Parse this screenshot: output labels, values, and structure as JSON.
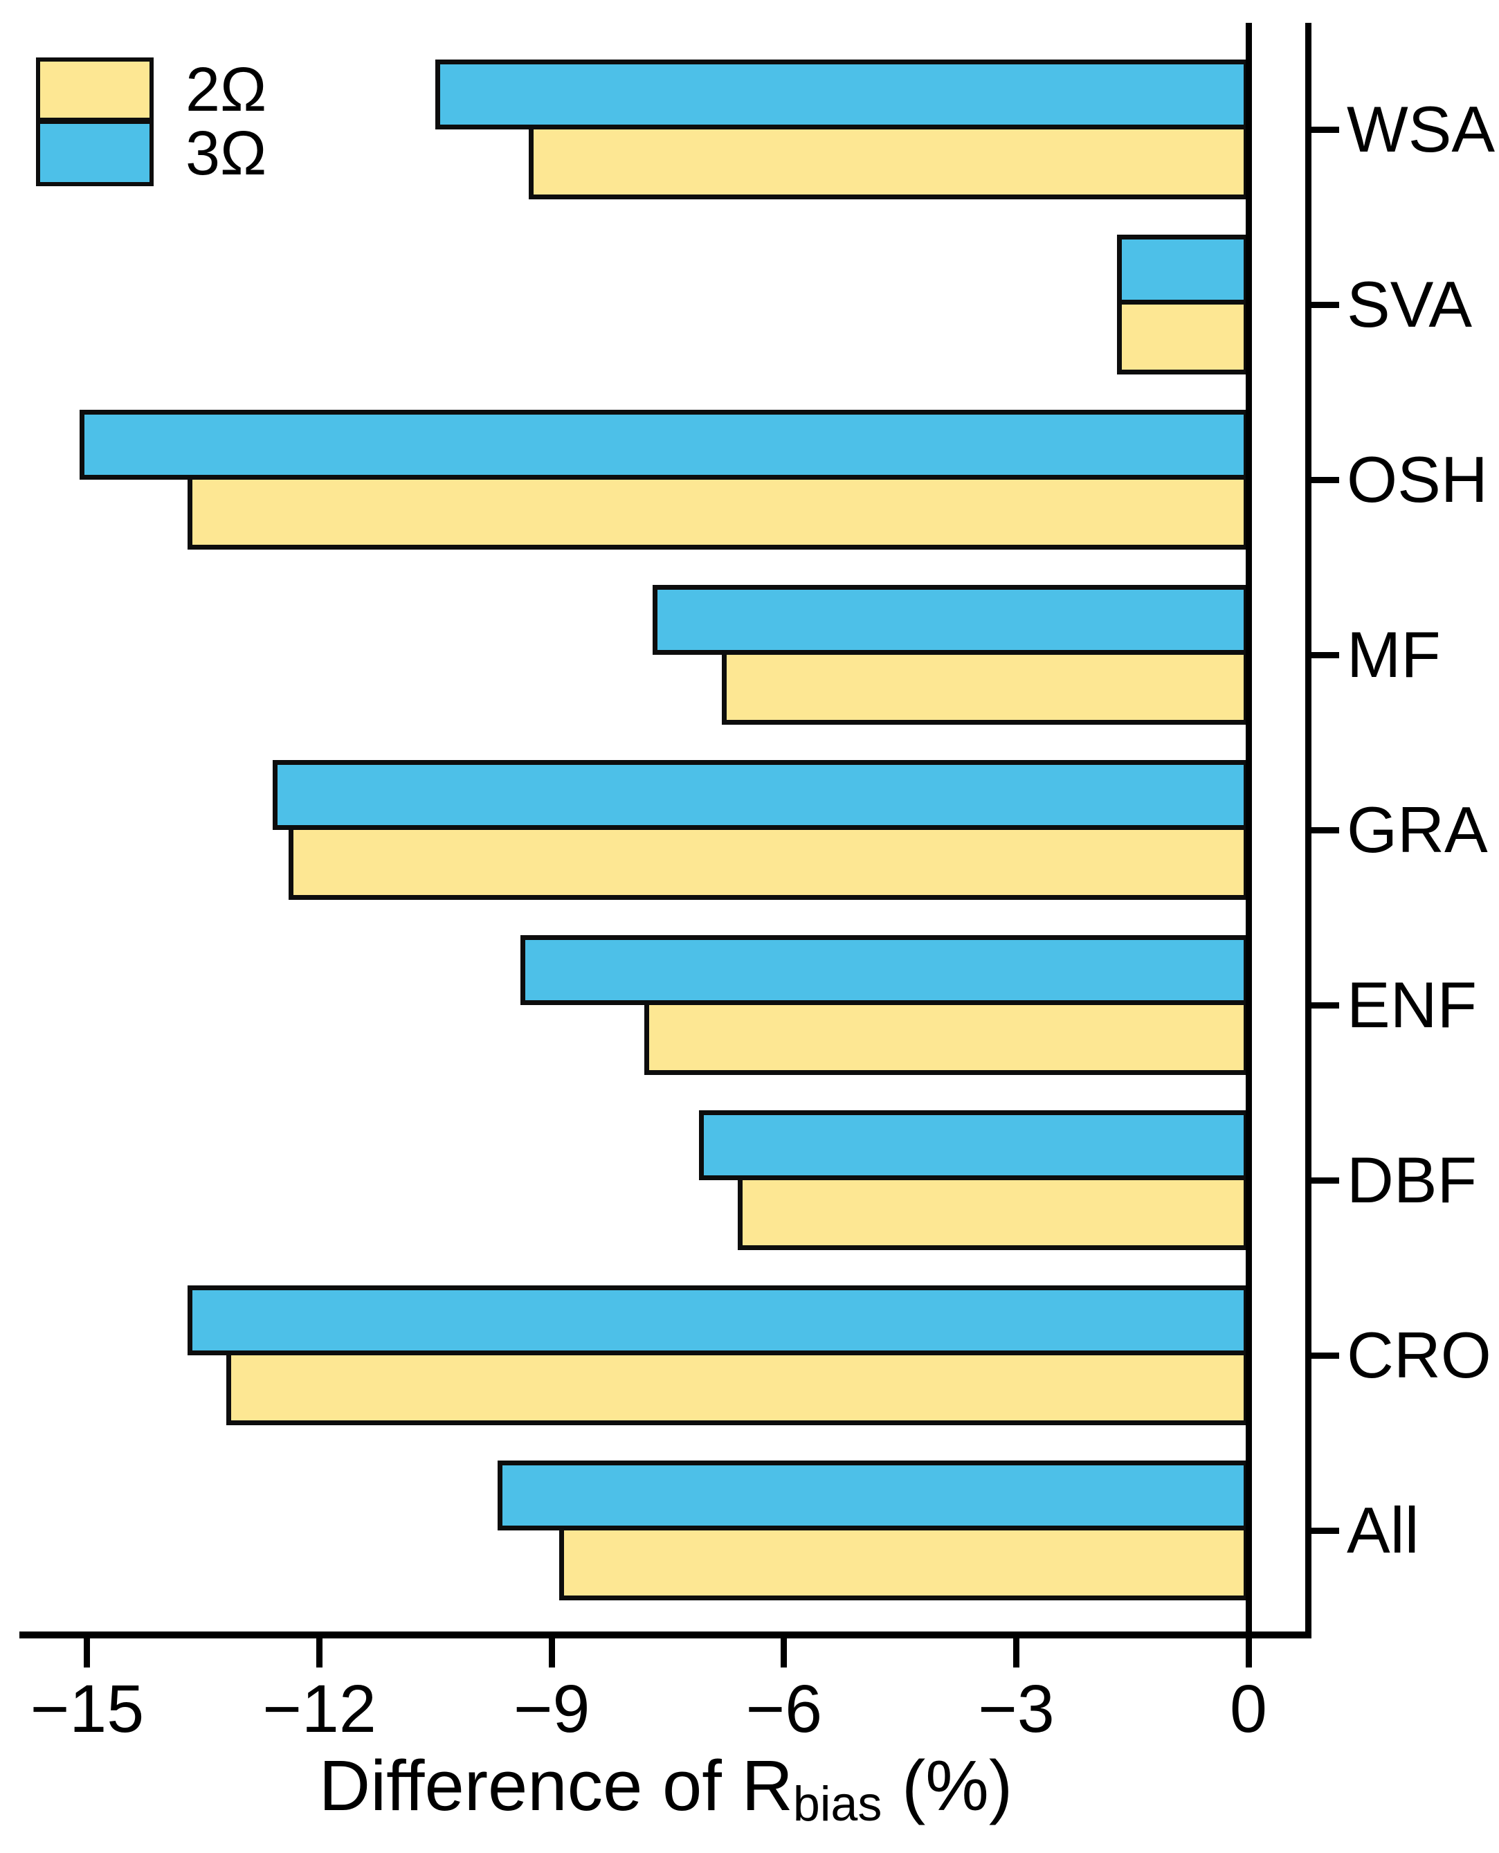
{
  "legend": {
    "items": [
      {
        "label": "2Ω",
        "color": "#FDE793"
      },
      {
        "label": "3Ω",
        "color": "#4DC0E8"
      }
    ]
  },
  "axes": {
    "x_label": {
      "prefix": "Difference of R",
      "sub": "bias",
      "suffix": " (%)"
    },
    "x_ticks": [
      {
        "value": -15,
        "label": "−15"
      },
      {
        "value": -12,
        "label": "−12"
      },
      {
        "value": -9,
        "label": "−9"
      },
      {
        "value": -6,
        "label": "−6"
      },
      {
        "value": -3,
        "label": "−3"
      },
      {
        "value": 0,
        "label": "0"
      }
    ]
  },
  "chart_data": {
    "type": "bar",
    "orientation": "horizontal",
    "title": "",
    "xlabel": "Difference of R_bias (%)",
    "ylabel": "",
    "categories": [
      "WSA",
      "SVA",
      "OSH",
      "MF",
      "GRA",
      "ENF",
      "DBF",
      "CRO",
      "All"
    ],
    "series": [
      {
        "name": "2Ω",
        "color": "#FDE793",
        "values": [
          -9.3,
          -1.7,
          -13.7,
          -6.8,
          -12.4,
          -7.8,
          -6.6,
          -13.2,
          -8.9
        ]
      },
      {
        "name": "3Ω",
        "color": "#4DC0E8",
        "values": [
          -10.5,
          -1.7,
          -15.1,
          -7.7,
          -12.6,
          -9.4,
          -7.1,
          -13.7,
          -9.7
        ]
      }
    ],
    "xlim": [
      -15.9,
      0.8
    ],
    "grid": false,
    "legend_position": "top-left",
    "layout_note": "3Ω (blue) bar drawn above 2Ω (yellow) bar in each category group; bars extend left from the zero line; category labels on right spine"
  }
}
